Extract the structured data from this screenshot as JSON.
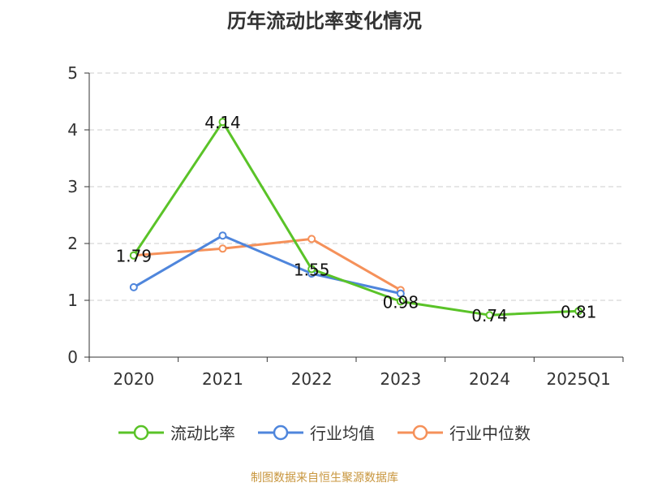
{
  "title": "历年流动比率变化情况",
  "source": "制图数据来自恒生聚源数据库",
  "chart_data": {
    "type": "line",
    "categories": [
      "2020",
      "2021",
      "2022",
      "2023",
      "2024",
      "2025Q1"
    ],
    "ylim": [
      0,
      5
    ],
    "yticks": [
      0,
      1,
      2,
      3,
      4,
      5
    ],
    "grid": true,
    "legend_position": "bottom",
    "series": [
      {
        "name": "流动比率",
        "color": "#5ac328",
        "values": [
          1.79,
          4.14,
          1.55,
          0.98,
          0.74,
          0.81
        ],
        "labels": [
          "1.79",
          "4.14",
          "1.55",
          "0.98",
          "0.74",
          "0.81"
        ]
      },
      {
        "name": "行业均值",
        "color": "#4f86dc",
        "values": [
          1.23,
          2.14,
          1.47,
          1.12,
          null,
          null
        ]
      },
      {
        "name": "行业中位数",
        "color": "#f5915a",
        "values": [
          1.79,
          1.91,
          2.08,
          1.18,
          null,
          null
        ]
      }
    ]
  }
}
